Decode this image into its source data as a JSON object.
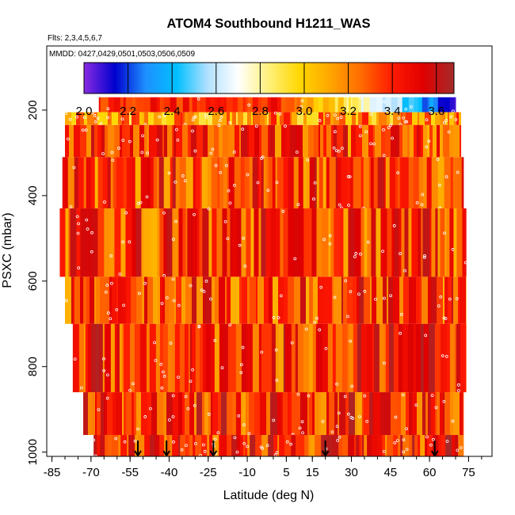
{
  "chart_data": {
    "type": "heatmap",
    "title": "ATOM4 Southbound H1211_WAS",
    "flights_note": "Flts: 2,3,4,5,6,7",
    "dates_note": "MMDD: 0427,0429,0501,0503,0506,0509",
    "xlabel": "Latitude (deg N)",
    "ylabel": "PSXC (mbar)",
    "xlim": [
      -87,
      84
    ],
    "ylim": [
      1010,
      50
    ],
    "x_ticks": [
      -85,
      -70,
      -55,
      -40,
      -25,
      -10,
      5,
      15,
      30,
      45,
      60,
      75
    ],
    "x_tick_labels": [
      "-85",
      "-70",
      "-55",
      "-40",
      "-25",
      "-10",
      "5",
      "15",
      "30",
      "45",
      "60",
      "75"
    ],
    "y_ticks": [
      200,
      400,
      600,
      800,
      1000
    ],
    "y_tick_labels": [
      "200",
      "400",
      "600",
      "800",
      "1000"
    ],
    "colorbar": {
      "min": 2.0,
      "max": 3.68,
      "ticks": [
        2.0,
        2.2,
        2.4,
        2.6,
        2.8,
        3.0,
        3.2,
        3.4,
        3.6
      ],
      "tick_labels": [
        "2.0",
        "2.2",
        "2.4",
        "2.6",
        "2.8",
        "3.0",
        "3.2",
        "3.4",
        "3.6"
      ],
      "colors": [
        "#8a2be2",
        "#0000cd",
        "#1e90ff",
        "#00bfff",
        "#b0e0ff",
        "#ffffff",
        "#fff07a",
        "#ffd700",
        "#ffa500",
        "#ff6a00",
        "#ff1a00",
        "#e00000",
        "#a52a2a"
      ]
    },
    "pressure_bands": [
      {
        "p_top": 170,
        "p_bot": 205,
        "lat_min": -67,
        "lat_max": 70,
        "mean": 2.95
      },
      {
        "p_top": 205,
        "p_bot": 235,
        "lat_min": -80,
        "lat_max": 72,
        "mean": 3.15
      },
      {
        "p_top": 235,
        "p_bot": 310,
        "lat_min": -80,
        "lat_max": 72,
        "mean": 3.35
      },
      {
        "p_top": 310,
        "p_bot": 430,
        "lat_min": -81,
        "lat_max": 73,
        "mean": 3.35
      },
      {
        "p_top": 430,
        "p_bot": 590,
        "lat_min": -82,
        "lat_max": 74,
        "mean": 3.35
      },
      {
        "p_top": 590,
        "p_bot": 700,
        "lat_min": -80,
        "lat_max": 74,
        "mean": 3.35
      },
      {
        "p_top": 700,
        "p_bot": 860,
        "lat_min": -77,
        "lat_max": 74,
        "mean": 3.38
      },
      {
        "p_top": 860,
        "p_bot": 960,
        "lat_min": -73,
        "lat_max": 73,
        "mean": 3.38
      },
      {
        "p_top": 960,
        "p_bot": 1010,
        "lat_min": -69,
        "lat_max": 73,
        "mean": 3.4
      }
    ],
    "arrow_latitudes": [
      -52,
      -41,
      -23,
      20,
      62
    ]
  }
}
